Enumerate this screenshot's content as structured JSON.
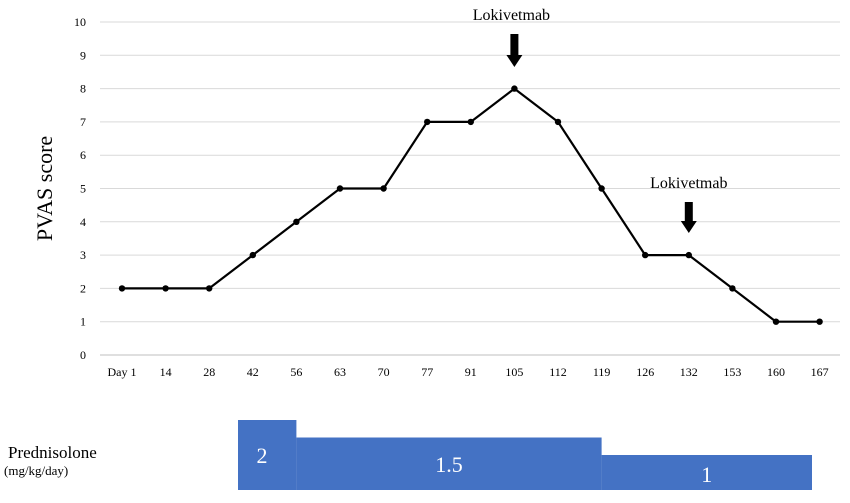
{
  "chart_data": {
    "type": "line",
    "ylabel": "PVAS score",
    "xlabel": "",
    "ylim": [
      0,
      10
    ],
    "yticks": [
      "0",
      "1",
      "2",
      "3",
      "4",
      "5",
      "6",
      "7",
      "8",
      "9",
      "10"
    ],
    "categories": [
      "Day 1",
      "14",
      "28",
      "42",
      "56",
      "63",
      "70",
      "77",
      "91",
      "105",
      "112",
      "119",
      "126",
      "132",
      "153",
      "160",
      "167"
    ],
    "series": [
      {
        "values": [
          2,
          2,
          2,
          3,
          4,
          5,
          5,
          7,
          7,
          8,
          7,
          5,
          3,
          3,
          2,
          1,
          1
        ]
      }
    ],
    "grid": true,
    "annotations": [
      {
        "text": "Lokivetmab",
        "at_category": "105"
      },
      {
        "text": "Lokivetmab",
        "at_category": "132"
      }
    ],
    "colors": {
      "line": "#000000",
      "grid": "#d9d9d9",
      "band": "#4472c4"
    }
  },
  "prednisolone": {
    "label": "Prednisolone",
    "unit": "(mg/kg/day)",
    "doses": [
      {
        "value": 2,
        "label": "2",
        "from": "42",
        "to": "56"
      },
      {
        "value": 1.5,
        "label": "1.5",
        "from": "56",
        "to": "119"
      },
      {
        "value": 1,
        "label": "1",
        "from": "119",
        "to": "167"
      }
    ]
  }
}
